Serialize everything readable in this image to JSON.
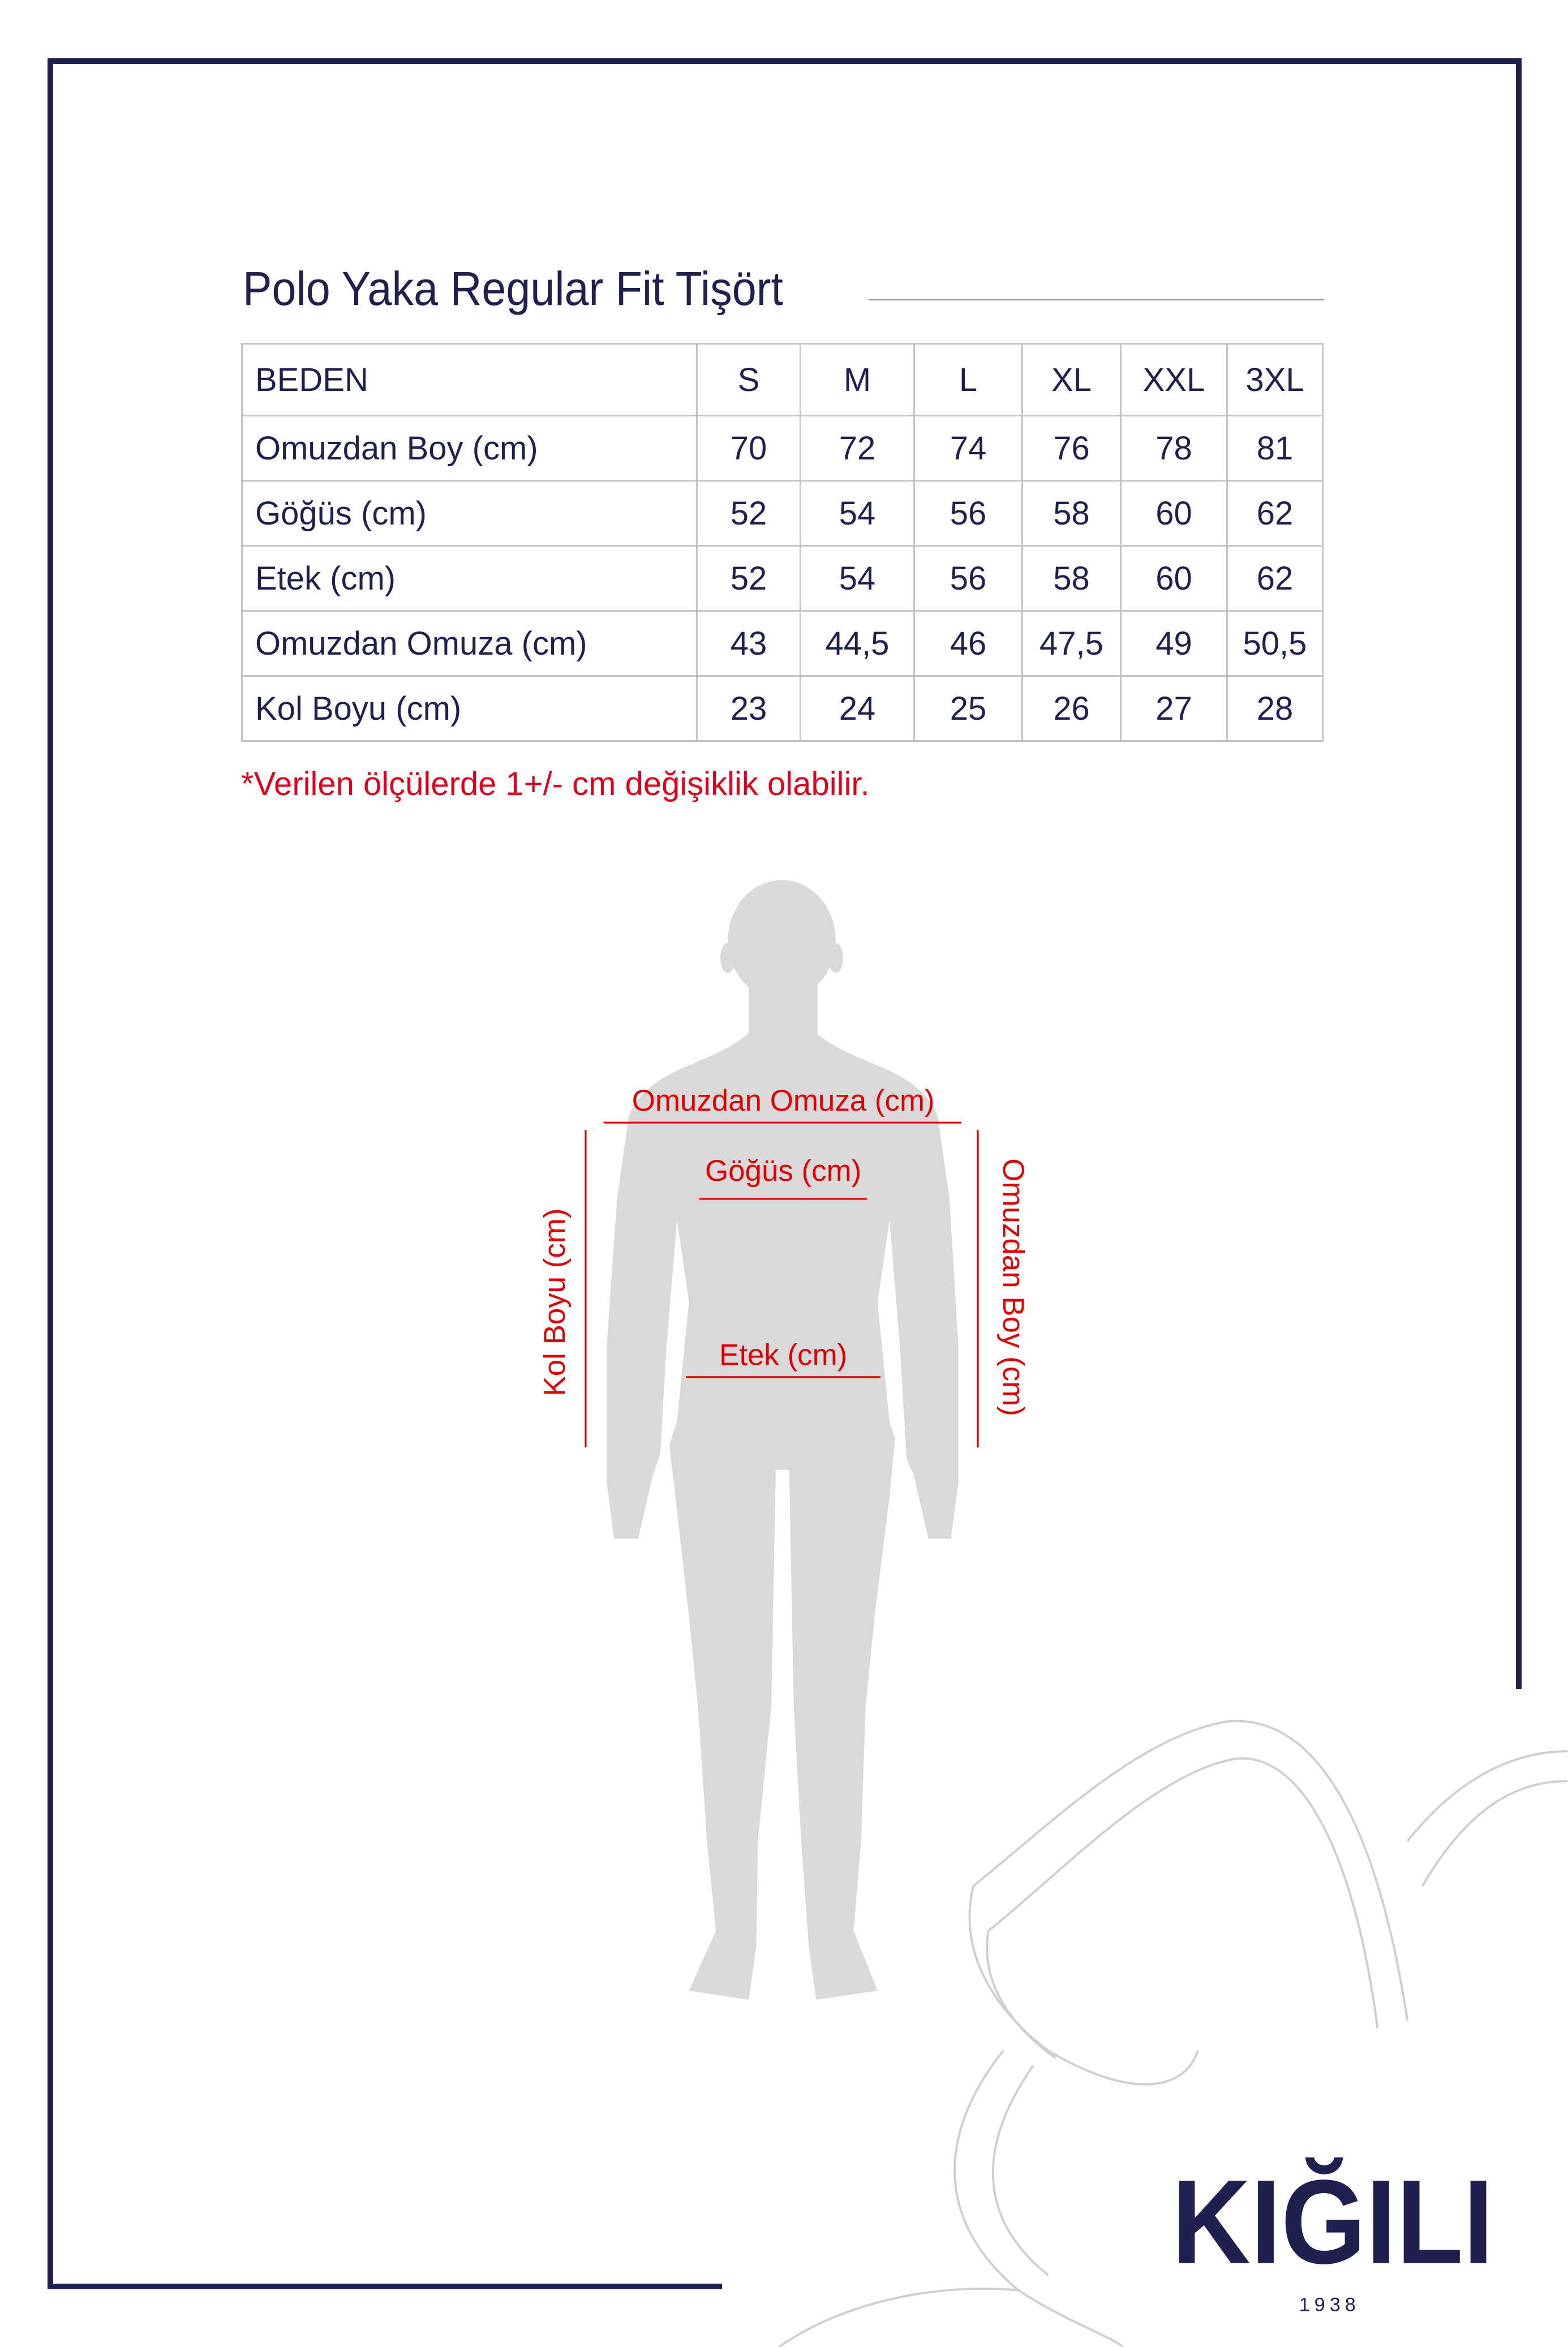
{
  "title": "Polo Yaka Regular Fit Tişört",
  "table": {
    "header": [
      "BEDEN",
      "S",
      "M",
      "L",
      "XL",
      "XXL",
      "3XL"
    ],
    "rows": [
      {
        "label": "Omuzdan Boy (cm)",
        "values": [
          "70",
          "72",
          "74",
          "76",
          "78",
          "81"
        ]
      },
      {
        "label": "Göğüs (cm)",
        "values": [
          "52",
          "54",
          "56",
          "58",
          "60",
          "62"
        ]
      },
      {
        "label": "Etek (cm)",
        "values": [
          "52",
          "54",
          "56",
          "58",
          "60",
          "62"
        ]
      },
      {
        "label": "Omuzdan Omuza (cm)",
        "values": [
          "43",
          "44,5",
          "46",
          "47,5",
          "49",
          "50,5"
        ]
      },
      {
        "label": "Kol Boyu (cm)",
        "values": [
          "23",
          "24",
          "25",
          "26",
          "27",
          "28"
        ]
      }
    ]
  },
  "note": "*Verilen ölçülerde 1+/- cm değişiklik olabilir.",
  "figure": {
    "shoulder_label": "Omuzdan Omuza (cm)",
    "chest_label": "Göğüs (cm)",
    "hem_label": "Etek (cm)",
    "sleeve_label": "Kol Boyu (cm)",
    "length_label": "Omuzdan Boy (cm)"
  },
  "logo": {
    "name": "KIĞILI",
    "year": "1938"
  },
  "colors": {
    "navy": "#1e2050",
    "red": "#e00000",
    "silhouette": "#d9d9d9",
    "grid": "#c4c4c4"
  }
}
